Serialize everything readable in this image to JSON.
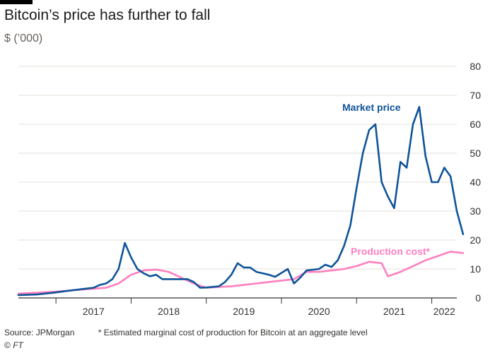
{
  "chart_data": {
    "type": "line",
    "title": "Bitcoin’s price has further to fall",
    "subtitle": "$ (’000)",
    "ylim": [
      0,
      80
    ],
    "y_ticks": [
      0,
      10,
      20,
      30,
      40,
      50,
      60,
      70,
      80
    ],
    "x_range": [
      "2016-07",
      "2022-05"
    ],
    "x_tick_labels": [
      "2017",
      "2018",
      "2019",
      "2020",
      "2021",
      "2022"
    ],
    "grid": true,
    "y_axis_position": "right",
    "series": [
      {
        "name": "Market price",
        "color": "#0f5499",
        "points": [
          [
            "2016-07",
            1.0
          ],
          [
            "2016-10",
            1.2
          ],
          [
            "2017-01",
            1.9
          ],
          [
            "2017-03",
            2.5
          ],
          [
            "2017-05",
            3.0
          ],
          [
            "2017-07",
            3.5
          ],
          [
            "2017-08",
            4.5
          ],
          [
            "2017-09",
            5.0
          ],
          [
            "2017-10",
            6.5
          ],
          [
            "2017-11",
            10.0
          ],
          [
            "2017-12",
            19.0
          ],
          [
            "2018-01",
            14.0
          ],
          [
            "2018-02",
            10.0
          ],
          [
            "2018-03",
            8.5
          ],
          [
            "2018-04",
            7.5
          ],
          [
            "2018-05",
            8.0
          ],
          [
            "2018-06",
            6.5
          ],
          [
            "2018-08",
            6.5
          ],
          [
            "2018-10",
            6.5
          ],
          [
            "2018-11",
            5.5
          ],
          [
            "2018-12",
            3.5
          ],
          [
            "2019-01",
            3.6
          ],
          [
            "2019-03",
            4.0
          ],
          [
            "2019-04",
            5.5
          ],
          [
            "2019-05",
            8.0
          ],
          [
            "2019-06",
            12.0
          ],
          [
            "2019-07",
            10.5
          ],
          [
            "2019-08",
            10.5
          ],
          [
            "2019-09",
            9.0
          ],
          [
            "2019-10",
            8.5
          ],
          [
            "2019-11",
            8.0
          ],
          [
            "2019-12",
            7.3
          ],
          [
            "2020-02",
            10.0
          ],
          [
            "2020-03",
            5.0
          ],
          [
            "2020-04",
            7.0
          ],
          [
            "2020-05",
            9.5
          ],
          [
            "2020-07",
            10.0
          ],
          [
            "2020-08",
            11.5
          ],
          [
            "2020-09",
            10.7
          ],
          [
            "2020-10",
            13.0
          ],
          [
            "2020-11",
            18.0
          ],
          [
            "2020-12",
            25.0
          ],
          [
            "2021-01",
            38.0
          ],
          [
            "2021-02",
            50.0
          ],
          [
            "2021-03",
            58.0
          ],
          [
            "2021-04",
            60.0
          ],
          [
            "2021-05",
            40.0
          ],
          [
            "2021-06",
            35.0
          ],
          [
            "2021-07",
            31.0
          ],
          [
            "2021-08",
            47.0
          ],
          [
            "2021-09",
            45.0
          ],
          [
            "2021-10",
            60.0
          ],
          [
            "2021-11",
            66.0
          ],
          [
            "2021-12",
            49.0
          ],
          [
            "2022-01",
            40.0
          ],
          [
            "2022-02",
            40.0
          ],
          [
            "2022-03",
            45.0
          ],
          [
            "2022-04",
            42.0
          ],
          [
            "2022-05",
            30.0
          ],
          [
            "2022-06",
            22.0
          ]
        ]
      },
      {
        "name": "Production cost*",
        "color": "#ff7fbf",
        "points": [
          [
            "2016-07",
            1.5
          ],
          [
            "2016-10",
            1.8
          ],
          [
            "2017-01",
            2.2
          ],
          [
            "2017-04",
            2.7
          ],
          [
            "2017-07",
            3.2
          ],
          [
            "2017-09",
            3.5
          ],
          [
            "2017-11",
            5.0
          ],
          [
            "2018-01",
            8.0
          ],
          [
            "2018-03",
            9.5
          ],
          [
            "2018-05",
            9.8
          ],
          [
            "2018-07",
            9.0
          ],
          [
            "2018-09",
            7.0
          ],
          [
            "2018-11",
            5.0
          ],
          [
            "2019-01",
            3.5
          ],
          [
            "2019-03",
            3.8
          ],
          [
            "2019-05",
            4.0
          ],
          [
            "2019-07",
            4.5
          ],
          [
            "2019-09",
            5.0
          ],
          [
            "2019-11",
            5.5
          ],
          [
            "2020-01",
            6.0
          ],
          [
            "2020-03",
            6.5
          ],
          [
            "2020-05",
            9.0
          ],
          [
            "2020-07",
            9.0
          ],
          [
            "2020-09",
            9.5
          ],
          [
            "2020-11",
            10.0
          ],
          [
            "2021-01",
            11.0
          ],
          [
            "2021-03",
            12.5
          ],
          [
            "2021-05",
            12.0
          ],
          [
            "2021-06",
            7.5
          ],
          [
            "2021-08",
            9.0
          ],
          [
            "2021-10",
            11.0
          ],
          [
            "2021-12",
            13.0
          ],
          [
            "2022-02",
            14.5
          ],
          [
            "2022-04",
            16.0
          ],
          [
            "2022-06",
            15.5
          ]
        ]
      }
    ],
    "annotations": [
      {
        "text": "Market price",
        "color": "#0f5499"
      },
      {
        "text": "Production cost*",
        "color": "#ff7fbf"
      }
    ]
  },
  "footer": {
    "source": "Source: JPMorgan",
    "note": "* Estimated marginal cost of production for Bitcoin at an aggregate level",
    "copyright_symbol": "©",
    "copyright_brand": "FT"
  }
}
